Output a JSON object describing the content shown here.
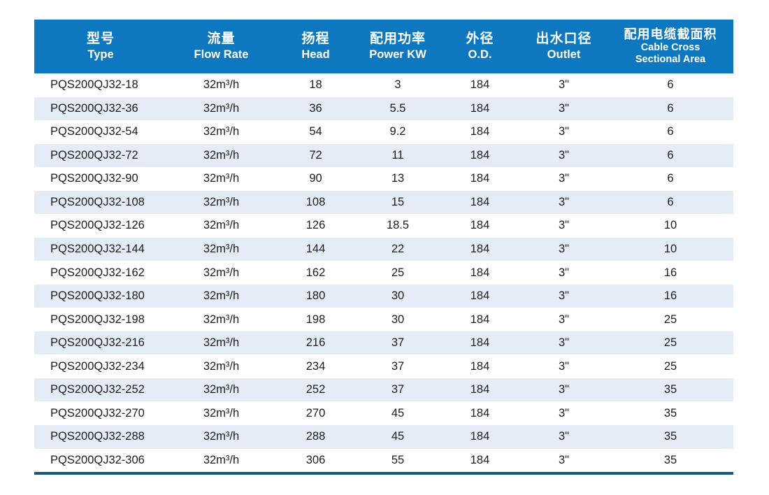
{
  "colors": {
    "header_bg": "#0d78c0",
    "header_text": "#ffffff",
    "stripe_bg": "#e4edf7",
    "row_text": "#1c1c1c",
    "bottom_border": "#15587f",
    "page_bg": "#ffffff"
  },
  "table": {
    "columns": [
      {
        "zh": "型号",
        "en": "Type"
      },
      {
        "zh": "流量",
        "en": "Flow Rate"
      },
      {
        "zh": "扬程",
        "en": "Head"
      },
      {
        "zh": "配用功率",
        "en": "Power KW"
      },
      {
        "zh": "外径",
        "en": "O.D."
      },
      {
        "zh": "出水口径",
        "en": "Outlet"
      },
      {
        "zh": "配用电缆截面积",
        "en": "Cable Cross",
        "en2": "Sectional Area"
      }
    ],
    "cell_names": [
      "cell-type",
      "cell-flow-rate",
      "cell-head",
      "cell-power",
      "cell-od",
      "cell-outlet",
      "cell-cable-area"
    ],
    "rows": [
      [
        "PQS200QJ32-18",
        "32m³/h",
        "18",
        "3",
        "184",
        "3\"",
        "6"
      ],
      [
        "PQS200QJ32-36",
        "32m³/h",
        "36",
        "5.5",
        "184",
        "3\"",
        "6"
      ],
      [
        "PQS200QJ32-54",
        "32m³/h",
        "54",
        "9.2",
        "184",
        "3\"",
        "6"
      ],
      [
        "PQS200QJ32-72",
        "32m³/h",
        "72",
        "11",
        "184",
        "3\"",
        "6"
      ],
      [
        "PQS200QJ32-90",
        "32m³/h",
        "90",
        "13",
        "184",
        "3\"",
        "6"
      ],
      [
        "PQS200QJ32-108",
        "32m³/h",
        "108",
        "15",
        "184",
        "3\"",
        "6"
      ],
      [
        "PQS200QJ32-126",
        "32m³/h",
        "126",
        "18.5",
        "184",
        "3\"",
        "10"
      ],
      [
        "PQS200QJ32-144",
        "32m³/h",
        "144",
        "22",
        "184",
        "3\"",
        "10"
      ],
      [
        "PQS200QJ32-162",
        "32m³/h",
        "162",
        "25",
        "184",
        "3\"",
        "16"
      ],
      [
        "PQS200QJ32-180",
        "32m³/h",
        "180",
        "30",
        "184",
        "3\"",
        "16"
      ],
      [
        "PQS200QJ32-198",
        "32m³/h",
        "198",
        "30",
        "184",
        "3\"",
        "25"
      ],
      [
        "PQS200QJ32-216",
        "32m³/h",
        "216",
        "37",
        "184",
        "3\"",
        "25"
      ],
      [
        "PQS200QJ32-234",
        "32m³/h",
        "234",
        "37",
        "184",
        "3\"",
        "25"
      ],
      [
        "PQS200QJ32-252",
        "32m³/h",
        "252",
        "37",
        "184",
        "3\"",
        "35"
      ],
      [
        "PQS200QJ32-270",
        "32m³/h",
        "270",
        "45",
        "184",
        "3\"",
        "35"
      ],
      [
        "PQS200QJ32-288",
        "32m³/h",
        "288",
        "45",
        "184",
        "3\"",
        "35"
      ],
      [
        "PQS200QJ32-306",
        "32m³/h",
        "306",
        "55",
        "184",
        "3\"",
        "35"
      ]
    ]
  }
}
